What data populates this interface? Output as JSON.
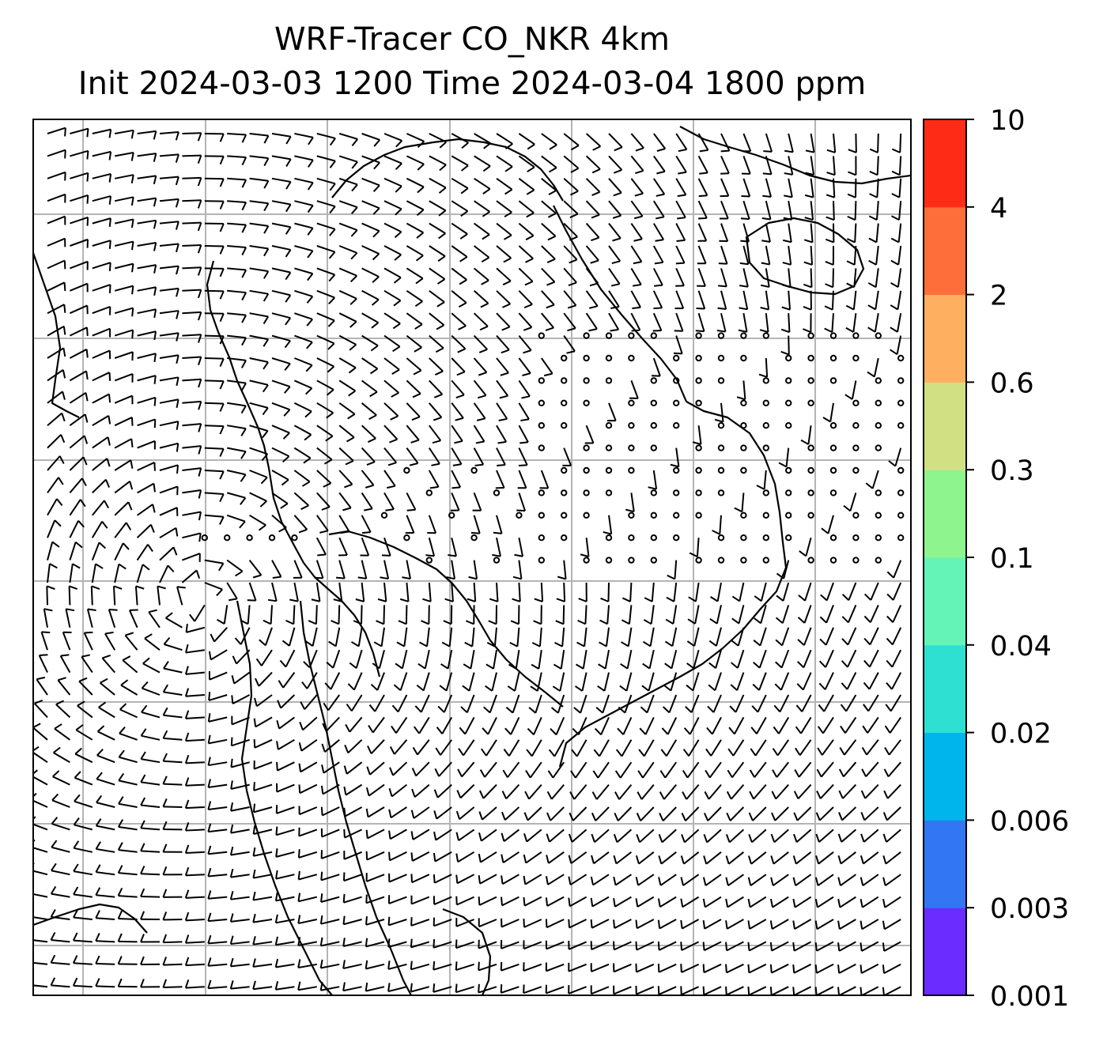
{
  "title": {
    "line1": "WRF-Tracer CO_NKR 4km",
    "line2": "Init 2024-03-03 1200 Time 2024-03-04 1800 ppm"
  },
  "colorbar": {
    "ticks": [
      "0.001",
      "0.003",
      "0.006",
      "0.02",
      "0.04",
      "0.1",
      "0.3",
      "0.6",
      "2",
      "4",
      "10"
    ],
    "colors": [
      "#6a2cff",
      "#3276f4",
      "#00b4ec",
      "#2ee0d2",
      "#64f4b8",
      "#8ef48e",
      "#d2e084",
      "#feb060",
      "#fe6e3a",
      "#fe2c16"
    ]
  },
  "map": {
    "gridlines": true,
    "tracer_field_visible": false,
    "wind_barbs": true,
    "calm_markers": "open circles",
    "coastlines": true
  }
}
